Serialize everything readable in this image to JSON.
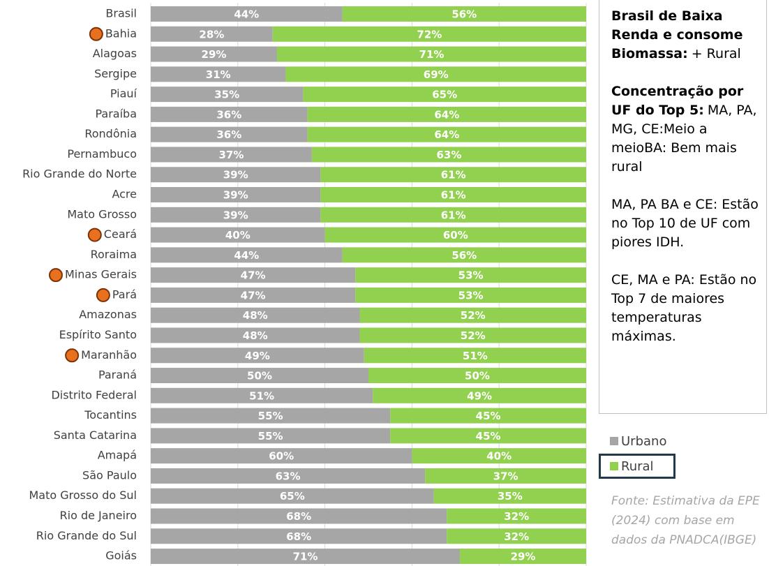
{
  "chart_data": {
    "type": "stacked_barh",
    "categories": [
      "Brasil",
      "Bahia",
      "Alagoas",
      "Sergipe",
      "Piauí",
      "Paraíba",
      "Rondônia",
      "Pernambuco",
      "Rio Grande do Norte",
      "Acre",
      "Mato Grosso",
      "Ceará",
      "Roraima",
      "Minas Gerais",
      "Pará",
      "Amazonas",
      "Espírito Santo",
      "Maranhão",
      "Paraná",
      "Distrito Federal",
      "Tocantins",
      "Santa Catarina",
      "Amapá",
      "São Paulo",
      "Mato Grosso do Sul",
      "Rio de Janeiro",
      "Rio Grande do Sul",
      "Goiás"
    ],
    "series": [
      {
        "name": "Urbano",
        "color": "#a6a6a6",
        "values": [
          44,
          28,
          29,
          31,
          35,
          36,
          36,
          37,
          39,
          39,
          39,
          40,
          44,
          47,
          47,
          48,
          48,
          49,
          50,
          51,
          55,
          55,
          60,
          63,
          65,
          68,
          68,
          71
        ],
        "value_labels": [
          "44%",
          "28%",
          "29%",
          "31%",
          "35%",
          "36%",
          "36%",
          "37%",
          "39%",
          "39%",
          "39%",
          "40%",
          "44%",
          "47%",
          "47%",
          "48%",
          "48%",
          "49%",
          "50%",
          "51%",
          "55%",
          "55%",
          "60%",
          "63%",
          "65%",
          "68%",
          "68%",
          "71%"
        ]
      },
      {
        "name": "Rural",
        "color": "#92d050",
        "values": [
          56,
          72,
          71,
          69,
          65,
          64,
          64,
          63,
          61,
          61,
          61,
          60,
          56,
          53,
          53,
          52,
          52,
          51,
          50,
          49,
          45,
          45,
          40,
          37,
          35,
          32,
          32,
          29
        ],
        "value_labels": [
          "56%",
          "72%",
          "71%",
          "69%",
          "65%",
          "64%",
          "64%",
          "63%",
          "61%",
          "61%",
          "61%",
          "60%",
          "56%",
          "53%",
          "53%",
          "52%",
          "52%",
          "51%",
          "50%",
          "49%",
          "45%",
          "45%",
          "40%",
          "37%",
          "35%",
          "32%",
          "32%",
          "29%"
        ]
      }
    ],
    "xlim": [
      0,
      100
    ],
    "xticks": [
      0,
      20,
      40,
      60,
      80,
      100
    ],
    "grid": true,
    "highlighted": [
      1,
      11,
      13,
      14,
      17
    ],
    "highlight_color": "#e8701f",
    "legend": "right",
    "notes": [
      {
        "bold": "Brasil de Baixa Renda e consome Biomassa:",
        "lines": [
          "+ Rural"
        ]
      },
      {
        "bold": "Concentração por UF do Top 5:",
        "lines": [
          "MA, PA, MG, CE:",
          "Meio a meio",
          "BA: Bem mais rural"
        ]
      },
      {
        "lines": [
          "MA, PA BA e CE: Estão no Top 10 de UF com piores IDH."
        ]
      },
      {
        "lines": [
          "CE, MA e PA: Estão no Top 7 de maiores temperaturas máximas."
        ]
      }
    ],
    "source": "Fonte: Estimativa da EPE (2024) com base em dados da PNADCA(IBGE)"
  }
}
